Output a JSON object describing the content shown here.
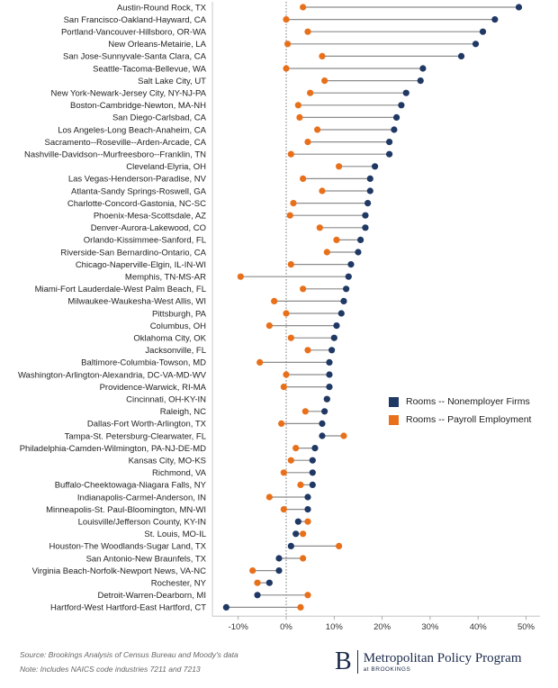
{
  "chart_data": {
    "type": "dumbbell",
    "xlim": [
      -12,
      50
    ],
    "x_ticks": [
      -10,
      0,
      10,
      20,
      30,
      40,
      50
    ],
    "x_tick_labels": [
      "-10%",
      "0%",
      "10%",
      "20%",
      "30%",
      "40%",
      "50%"
    ],
    "grid": false,
    "legend_position": "right-middle",
    "series": [
      {
        "name": "Rooms -- Nonemployer Firms",
        "color": "#1f3864"
      },
      {
        "name": "Rooms -- Payroll Employment",
        "color": "#e8701a"
      }
    ],
    "categories": [
      {
        "metro": "Austin-Round Rock, TX",
        "nonemployer": 48.5,
        "payroll": 3.5
      },
      {
        "metro": "San Francisco-Oakland-Hayward, CA",
        "nonemployer": 43.5,
        "payroll": 0.0
      },
      {
        "metro": "Portland-Vancouver-Hillsboro, OR-WA",
        "nonemployer": 41.0,
        "payroll": 4.5
      },
      {
        "metro": "New Orleans-Metairie, LA",
        "nonemployer": 39.5,
        "payroll": 0.3
      },
      {
        "metro": "San Jose-Sunnyvale-Santa Clara, CA",
        "nonemployer": 36.5,
        "payroll": 7.5
      },
      {
        "metro": "Seattle-Tacoma-Bellevue, WA",
        "nonemployer": 28.5,
        "payroll": 0.0
      },
      {
        "metro": "Salt Lake City, UT",
        "nonemployer": 28.0,
        "payroll": 8.0
      },
      {
        "metro": "New York-Newark-Jersey City, NY-NJ-PA",
        "nonemployer": 25.0,
        "payroll": 5.0
      },
      {
        "metro": "Boston-Cambridge-Newton, MA-NH",
        "nonemployer": 24.0,
        "payroll": 2.5
      },
      {
        "metro": "San Diego-Carlsbad, CA",
        "nonemployer": 23.0,
        "payroll": 2.8
      },
      {
        "metro": "Los Angeles-Long Beach-Anaheim, CA",
        "nonemployer": 22.5,
        "payroll": 6.5
      },
      {
        "metro": "Sacramento--Roseville--Arden-Arcade, CA",
        "nonemployer": 21.5,
        "payroll": 4.5
      },
      {
        "metro": "Nashville-Davidson--Murfreesboro--Franklin, TN",
        "nonemployer": 21.5,
        "payroll": 1.0
      },
      {
        "metro": "Cleveland-Elyria, OH",
        "nonemployer": 18.5,
        "payroll": 11.0
      },
      {
        "metro": "Las Vegas-Henderson-Paradise, NV",
        "nonemployer": 17.5,
        "payroll": 3.5
      },
      {
        "metro": "Atlanta-Sandy Springs-Roswell, GA",
        "nonemployer": 17.5,
        "payroll": 7.5
      },
      {
        "metro": "Charlotte-Concord-Gastonia, NC-SC",
        "nonemployer": 17.0,
        "payroll": 1.5
      },
      {
        "metro": "Phoenix-Mesa-Scottsdale, AZ",
        "nonemployer": 16.5,
        "payroll": 0.8
      },
      {
        "metro": "Denver-Aurora-Lakewood, CO",
        "nonemployer": 16.5,
        "payroll": 7.0
      },
      {
        "metro": "Orlando-Kissimmee-Sanford, FL",
        "nonemployer": 15.5,
        "payroll": 10.5
      },
      {
        "metro": "Riverside-San Bernardino-Ontario, CA",
        "nonemployer": 15.0,
        "payroll": 8.5
      },
      {
        "metro": "Chicago-Naperville-Elgin, IL-IN-WI",
        "nonemployer": 13.5,
        "payroll": 1.0
      },
      {
        "metro": "Memphis, TN-MS-AR",
        "nonemployer": 13.0,
        "payroll": -9.5
      },
      {
        "metro": "Miami-Fort Lauderdale-West Palm Beach, FL",
        "nonemployer": 12.5,
        "payroll": 3.5
      },
      {
        "metro": "Milwaukee-Waukesha-West Allis, WI",
        "nonemployer": 12.0,
        "payroll": -2.5
      },
      {
        "metro": "Pittsburgh, PA",
        "nonemployer": 11.5,
        "payroll": 0.0
      },
      {
        "metro": "Columbus, OH",
        "nonemployer": 10.5,
        "payroll": -3.5
      },
      {
        "metro": "Oklahoma City, OK",
        "nonemployer": 10.0,
        "payroll": 1.0
      },
      {
        "metro": "Jacksonville, FL",
        "nonemployer": 9.5,
        "payroll": 4.5
      },
      {
        "metro": "Baltimore-Columbia-Towson, MD",
        "nonemployer": 9.0,
        "payroll": -5.5
      },
      {
        "metro": "Washington-Arlington-Alexandria, DC-VA-MD-WV",
        "nonemployer": 9.0,
        "payroll": 0.0
      },
      {
        "metro": "Providence-Warwick, RI-MA",
        "nonemployer": 9.0,
        "payroll": -0.5
      },
      {
        "metro": "Cincinnati, OH-KY-IN",
        "nonemployer": 8.5,
        "payroll": 8.5
      },
      {
        "metro": "Raleigh, NC",
        "nonemployer": 8.0,
        "payroll": 4.0
      },
      {
        "metro": "Dallas-Fort Worth-Arlington, TX",
        "nonemployer": 7.5,
        "payroll": -1.0
      },
      {
        "metro": "Tampa-St. Petersburg-Clearwater, FL",
        "nonemployer": 7.5,
        "payroll": 12.0
      },
      {
        "metro": "Philadelphia-Camden-Wilmington, PA-NJ-DE-MD",
        "nonemployer": 6.0,
        "payroll": 2.0
      },
      {
        "metro": "Kansas City, MO-KS",
        "nonemployer": 5.5,
        "payroll": 1.0
      },
      {
        "metro": "Richmond, VA",
        "nonemployer": 5.5,
        "payroll": -0.5
      },
      {
        "metro": "Buffalo-Cheektowaga-Niagara Falls, NY",
        "nonemployer": 5.5,
        "payroll": 3.0
      },
      {
        "metro": "Indianapolis-Carmel-Anderson, IN",
        "nonemployer": 4.5,
        "payroll": -3.5
      },
      {
        "metro": "Minneapolis-St. Paul-Bloomington, MN-WI",
        "nonemployer": 4.5,
        "payroll": -0.5
      },
      {
        "metro": "Louisville/Jefferson County, KY-IN",
        "nonemployer": 2.5,
        "payroll": 4.5
      },
      {
        "metro": "St. Louis, MO-IL",
        "nonemployer": 2.0,
        "payroll": 3.5
      },
      {
        "metro": "Houston-The Woodlands-Sugar Land, TX",
        "nonemployer": 1.0,
        "payroll": 11.0
      },
      {
        "metro": "San Antonio-New Braunfels, TX",
        "nonemployer": -1.5,
        "payroll": 3.5
      },
      {
        "metro": "Virginia Beach-Norfolk-Newport News, VA-NC",
        "nonemployer": -1.5,
        "payroll": -7.0
      },
      {
        "metro": "Rochester, NY",
        "nonemployer": -3.5,
        "payroll": -6.0
      },
      {
        "metro": "Detroit-Warren-Dearborn, MI",
        "nonemployer": -6.0,
        "payroll": 4.5
      },
      {
        "metro": "Hartford-West Hartford-East Hartford, CT",
        "nonemployer": -12.5,
        "payroll": 3.0
      }
    ]
  },
  "legend": {
    "nonemployer_label": "Rooms -- Nonemployer Firms",
    "payroll_label": "Rooms -- Payroll Employment"
  },
  "footer": {
    "source": "Source: Brookings Analysis of Census Bureau and Moody's data",
    "note": "Note: Includes NAICS code industries 7211 and 7213",
    "brand_mark": "B",
    "brand_title": "Metropolitan Policy Program",
    "brand_sub": "at BROOKINGS"
  }
}
